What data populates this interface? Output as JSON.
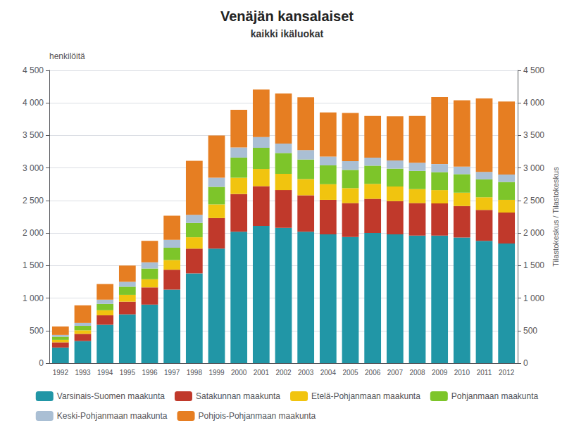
{
  "chart_data": {
    "type": "bar",
    "title": "Venäjän kansalaiset",
    "subtitle": "kaikki ikäluokat",
    "y_label": "henkilöitä",
    "y2_label": "Tilastokeskus / Tilastokeskus",
    "stacked": true,
    "grid": true,
    "legend": "bottom",
    "categories": [
      "1992",
      "1993",
      "1994",
      "1995",
      "1996",
      "1997",
      "1998",
      "1999",
      "2000",
      "2001",
      "2002",
      "2003",
      "2004",
      "2005",
      "2006",
      "2007",
      "2008",
      "2009",
      "2010",
      "2011",
      "2012"
    ],
    "series": [
      {
        "name": "Varsinais-Suomen maakunta",
        "color": "#2196A6",
        "values": [
          240,
          340,
          590,
          750,
          900,
          1130,
          1380,
          1760,
          2020,
          2110,
          2080,
          2020,
          1980,
          1940,
          2000,
          1980,
          1960,
          1960,
          1930,
          1880,
          1840
        ]
      },
      {
        "name": "Satakunnan maakunta",
        "color": "#C0392B",
        "values": [
          80,
          110,
          145,
          195,
          265,
          305,
          380,
          470,
          580,
          610,
          580,
          560,
          530,
          520,
          525,
          510,
          500,
          495,
          485,
          475,
          475
        ]
      },
      {
        "name": "Etelä-Pohjanmaan maakunta",
        "color": "#F1C40F",
        "values": [
          38,
          55,
          78,
          105,
          125,
          150,
          175,
          210,
          250,
          265,
          250,
          250,
          240,
          230,
          230,
          225,
          215,
          205,
          205,
          195,
          195
        ]
      },
      {
        "name": "Pohjanmaan maakunta",
        "color": "#7DC52A",
        "values": [
          48,
          68,
          98,
          125,
          165,
          190,
          220,
          270,
          310,
          325,
          320,
          300,
          290,
          280,
          280,
          275,
          280,
          275,
          285,
          275,
          275
        ]
      },
      {
        "name": "Keski-Pohjanmaan maakunta",
        "color": "#AABFD4",
        "values": [
          28,
          45,
          65,
          75,
          95,
          120,
          125,
          140,
          155,
          165,
          145,
          145,
          135,
          135,
          125,
          125,
          125,
          125,
          115,
          115,
          115
        ]
      },
      {
        "name": "Pohjois-Pohjanmaan maakunta",
        "color": "#E67E22",
        "values": [
          130,
          270,
          240,
          250,
          330,
          370,
          830,
          650,
          580,
          730,
          770,
          810,
          680,
          740,
          640,
          680,
          720,
          1030,
          1020,
          1130,
          1120
        ]
      }
    ],
    "ylim": [
      0,
      4500
    ],
    "yticks": [
      0,
      500,
      {
        "value": 1000,
        "label": "1 000"
      },
      {
        "value": 1500,
        "label": "1 500"
      },
      {
        "value": 2000,
        "label": "2 000"
      },
      {
        "value": 2500,
        "label": "2 500"
      },
      {
        "value": 3000,
        "label": "3 000"
      },
      {
        "value": 3500,
        "label": "3 500"
      },
      {
        "value": 4000,
        "label": "4 000"
      },
      {
        "value": 4500,
        "label": "4 500"
      }
    ],
    "y2lim": [
      0,
      4500
    ],
    "y2ticks": [
      0,
      500,
      {
        "value": 1000,
        "label": "1 000"
      },
      {
        "value": 1500,
        "label": "1 500"
      },
      {
        "value": 2000,
        "label": "2 000"
      },
      {
        "value": 2500,
        "label": "2 500"
      },
      {
        "value": 3000,
        "label": "3 000"
      },
      {
        "value": 3500,
        "label": "3 500"
      },
      {
        "value": 4000,
        "label": "4 000"
      },
      {
        "value": 4500,
        "label": "4 500"
      }
    ]
  }
}
